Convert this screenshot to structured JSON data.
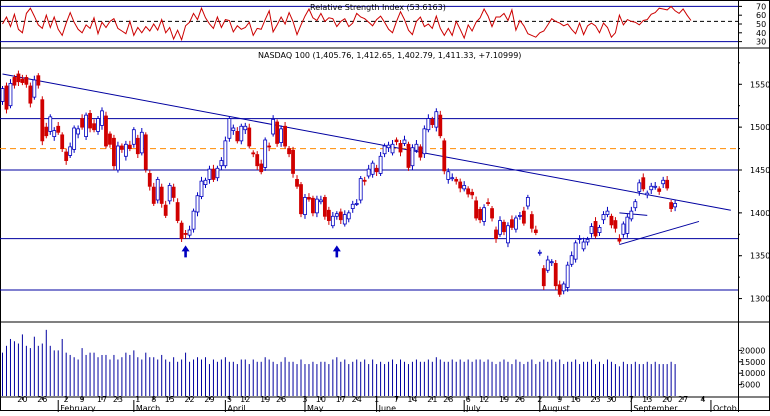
{
  "chart_data": [
    {
      "panel": "indicator",
      "type": "line",
      "title": "Relative Strength Index (53.6163)",
      "ylim": [
        25,
        75
      ],
      "y_ticks": [
        "70",
        "60",
        "50",
        "40",
        "30"
      ],
      "levels": [
        70,
        30
      ],
      "dashed_level": 53,
      "series": [
        {
          "values": [
            50,
            58,
            47,
            61,
            44,
            40,
            62,
            68,
            59,
            49,
            45,
            60,
            46,
            58,
            44,
            37,
            51,
            63,
            52,
            44,
            40,
            49,
            45,
            57,
            39,
            52,
            46,
            53,
            56,
            45,
            42,
            39,
            53,
            37,
            46,
            40,
            47,
            42,
            50,
            43,
            55,
            40,
            46,
            33,
            43,
            32,
            48,
            52,
            62,
            55,
            68,
            57,
            50,
            45,
            58,
            46,
            55,
            54,
            41,
            48,
            44,
            46,
            52,
            37,
            45,
            44,
            55,
            65,
            41,
            49,
            58,
            50,
            63,
            53,
            38,
            49,
            59,
            67,
            57,
            54,
            62,
            53,
            57,
            56,
            47,
            53,
            56,
            47,
            51,
            62,
            58,
            56,
            52,
            48,
            55,
            59,
            52,
            44,
            40,
            53,
            64,
            55,
            43,
            38,
            53,
            58,
            47,
            50,
            45,
            59,
            45,
            37,
            45,
            37,
            53,
            44,
            34,
            49,
            42,
            52,
            57,
            67,
            59,
            47,
            58,
            58,
            62,
            54,
            66,
            43,
            54,
            48,
            39,
            37,
            35,
            40,
            42,
            49,
            56,
            53,
            51,
            48,
            50,
            44,
            39,
            51,
            38,
            48,
            51,
            48,
            40,
            51,
            46,
            35,
            40,
            60,
            49,
            55,
            53,
            52,
            49,
            54,
            55,
            61,
            63,
            68,
            67,
            66,
            70,
            65,
            62,
            67,
            60,
            54
          ]
        }
      ]
    },
    {
      "panel": "price",
      "type": "candlestick",
      "title": "NASDAQ 100 (1,405.76, 1,412.65, 1,402.79, 1,411.33, +7.10999)",
      "ylim": [
        1275,
        1590
      ],
      "y_ticks": [
        "1550",
        "1500",
        "1450",
        "1400",
        "1350",
        "1300"
      ],
      "horizontal_levels": [
        1510,
        1450,
        1370,
        1310
      ],
      "dashed_level": 1475,
      "trendline": [
        [
          0,
          1562
        ],
        [
          183,
          1403
        ]
      ],
      "triangle": [
        [
          155,
          1400
        ],
        [
          162,
          1397
        ],
        [
          155,
          1363
        ],
        [
          175,
          1390
        ]
      ],
      "arrows_at": [
        46,
        84
      ],
      "candles": [
        [
          1530,
          1545
        ],
        [
          1548,
          1521
        ],
        [
          1525,
          1551
        ],
        [
          1558,
          1549
        ],
        [
          1562,
          1553
        ],
        [
          1556,
          1552
        ],
        [
          1558,
          1550
        ],
        [
          1548,
          1528
        ],
        [
          1535,
          1555
        ],
        [
          1560,
          1549
        ],
        [
          1532,
          1484
        ],
        [
          1500,
          1490
        ],
        [
          1495,
          1512
        ],
        [
          1489,
          1496
        ],
        [
          1501,
          1494
        ],
        [
          1491,
          1475
        ],
        [
          1471,
          1461
        ],
        [
          1467,
          1477
        ],
        [
          1474,
          1499
        ],
        [
          1492,
          1498
        ],
        [
          1510,
          1500
        ],
        [
          1489,
          1514
        ],
        [
          1516,
          1499
        ],
        [
          1504,
          1497
        ],
        [
          1495,
          1510
        ],
        [
          1502,
          1519
        ],
        [
          1513,
          1478
        ],
        [
          1492,
          1480
        ],
        [
          1487,
          1455
        ],
        [
          1450,
          1478
        ],
        [
          1478,
          1474
        ],
        [
          1466,
          1480
        ],
        [
          1479,
          1475
        ],
        [
          1480,
          1497
        ],
        [
          1487,
          1469
        ],
        [
          1470,
          1494
        ],
        [
          1491,
          1451
        ],
        [
          1446,
          1431
        ],
        [
          1430,
          1411
        ],
        [
          1415,
          1439
        ],
        [
          1430,
          1411
        ],
        [
          1409,
          1397
        ],
        [
          1414,
          1432
        ],
        [
          1430,
          1418
        ],
        [
          1412,
          1391
        ],
        [
          1388,
          1370
        ],
        [
          1376,
          1375
        ],
        [
          1374,
          1380
        ],
        [
          1381,
          1402
        ],
        [
          1401,
          1420
        ],
        [
          1419,
          1437
        ],
        [
          1433,
          1438
        ],
        [
          1439,
          1451
        ],
        [
          1451,
          1439
        ],
        [
          1441,
          1452
        ],
        [
          1455,
          1461
        ],
        [
          1455,
          1484
        ],
        [
          1487,
          1510
        ],
        [
          1496,
          1499
        ],
        [
          1495,
          1484
        ],
        [
          1484,
          1501
        ],
        [
          1497,
          1501
        ],
        [
          1499,
          1478
        ],
        [
          1470,
          1469
        ],
        [
          1468,
          1455
        ],
        [
          1457,
          1448
        ],
        [
          1453,
          1485
        ],
        [
          1478,
          1477
        ],
        [
          1492,
          1509
        ],
        [
          1506,
          1481
        ],
        [
          1482,
          1498
        ],
        [
          1501,
          1478
        ],
        [
          1475,
          1469
        ],
        [
          1473,
          1446
        ],
        [
          1439,
          1431
        ],
        [
          1433,
          1399
        ],
        [
          1398,
          1418
        ],
        [
          1418,
          1416
        ],
        [
          1417,
          1400
        ],
        [
          1400,
          1416
        ],
        [
          1413,
          1415
        ],
        [
          1418,
          1396
        ],
        [
          1403,
          1391
        ],
        [
          1385,
          1396
        ],
        [
          1396,
          1399
        ],
        [
          1401,
          1392
        ],
        [
          1387,
          1398
        ],
        [
          1393,
          1400
        ],
        [
          1405,
          1410
        ],
        [
          1411,
          1411
        ],
        [
          1415,
          1440
        ],
        [
          1438,
          1437
        ],
        [
          1443,
          1451
        ],
        [
          1445,
          1458
        ],
        [
          1452,
          1448
        ],
        [
          1446,
          1466
        ],
        [
          1469,
          1478
        ],
        [
          1476,
          1479
        ],
        [
          1470,
          1480
        ],
        [
          1485,
          1483
        ],
        [
          1481,
          1471
        ],
        [
          1481,
          1485
        ],
        [
          1480,
          1453
        ],
        [
          1455,
          1476
        ],
        [
          1473,
          1480
        ],
        [
          1477,
          1465
        ],
        [
          1469,
          1498
        ],
        [
          1497,
          1510
        ],
        [
          1509,
          1503
        ],
        [
          1500,
          1518
        ],
        [
          1514,
          1490
        ],
        [
          1484,
          1449
        ],
        [
          1439,
          1448
        ],
        [
          1440,
          1441
        ],
        [
          1439,
          1437
        ],
        [
          1436,
          1429
        ],
        [
          1428,
          1432
        ],
        [
          1428,
          1422
        ],
        [
          1424,
          1421
        ],
        [
          1414,
          1394
        ],
        [
          1404,
          1392
        ],
        [
          1390,
          1406
        ],
        [
          1412,
          1411
        ],
        [
          1405,
          1394
        ],
        [
          1380,
          1370
        ],
        [
          1375,
          1391
        ],
        [
          1389,
          1378
        ],
        [
          1365,
          1385
        ],
        [
          1392,
          1383
        ],
        [
          1381,
          1394
        ],
        [
          1397,
          1397
        ],
        [
          1402,
          1388
        ],
        [
          1408,
          1418
        ],
        [
          1398,
          1382
        ],
        [
          1380,
          1377
        ],
        [
          1354,
          1354
        ],
        [
          1335,
          1315
        ],
        [
          1333,
          1345
        ],
        [
          1342,
          1343
        ],
        [
          1341,
          1315
        ],
        [
          1316,
          1305
        ],
        [
          1309,
          1317
        ],
        [
          1313,
          1339
        ],
        [
          1340,
          1350
        ],
        [
          1346,
          1365
        ],
        [
          1369,
          1370
        ],
        [
          1358,
          1366
        ],
        [
          1366,
          1369
        ],
        [
          1376,
          1384
        ],
        [
          1390,
          1373
        ],
        [
          1377,
          1383
        ],
        [
          1392,
          1398
        ],
        [
          1398,
          1402
        ],
        [
          1396,
          1386
        ],
        [
          1391,
          1382
        ],
        [
          1370,
          1367
        ],
        [
          1375,
          1387
        ],
        [
          1376,
          1395
        ],
        [
          1393,
          1402
        ],
        [
          1406,
          1413
        ],
        [
          1425,
          1435
        ],
        [
          1441,
          1428
        ],
        [
          1421,
          1423
        ],
        [
          1427,
          1431
        ],
        [
          1430,
          1431
        ],
        [
          1428,
          1425
        ],
        [
          1434,
          1438
        ],
        [
          1438,
          1429
        ],
        [
          1412,
          1405
        ],
        [
          1407,
          1411
        ]
      ],
      "x_tick_labels": [
        "20",
        "26",
        "2",
        "9",
        "17",
        "23",
        "1",
        "8",
        "15",
        "22",
        "29",
        "5",
        "12",
        "19",
        "26",
        "3",
        "10",
        "17",
        "24",
        "1",
        "7",
        "14",
        "21",
        "28",
        "6",
        "12",
        "19",
        "26",
        "2",
        "9",
        "16",
        "23",
        "30",
        "7",
        "13",
        "20",
        "27",
        "4"
      ],
      "x_tick_positions": [
        5,
        10,
        16,
        20,
        25,
        29,
        34,
        38,
        42,
        47,
        52,
        57,
        61,
        66,
        70,
        76,
        80,
        85,
        89,
        94,
        99,
        103,
        108,
        112,
        117,
        121,
        126,
        130,
        135,
        140,
        144,
        149,
        153,
        158,
        162,
        167,
        171,
        176
      ],
      "month_labels": [
        {
          "label": "February",
          "at": 14
        },
        {
          "label": "March",
          "at": 33
        },
        {
          "label": "April",
          "at": 56
        },
        {
          "label": "May",
          "at": 76
        },
        {
          "label": "June",
          "at": 94
        },
        {
          "label": "July",
          "at": 116
        },
        {
          "label": "August",
          "at": 135
        },
        {
          "label": "September",
          "at": 158
        },
        {
          "label": "Octob",
          "at": 178
        }
      ]
    },
    {
      "panel": "volume",
      "type": "bar",
      "ylim": [
        0,
        32000
      ],
      "y_ticks": [
        "20000",
        "15000",
        "10000",
        "5000"
      ],
      "values": [
        19000,
        22000,
        25000,
        24000,
        23000,
        27000,
        22000,
        21000,
        26000,
        22000,
        23000,
        29000,
        22000,
        20000,
        20000,
        25000,
        19000,
        18000,
        17000,
        16000,
        21000,
        18000,
        19000,
        19000,
        17000,
        18000,
        18000,
        16000,
        18000,
        16000,
        17000,
        19000,
        18000,
        20000,
        17000,
        16000,
        19000,
        17000,
        17000,
        16000,
        18000,
        16000,
        15000,
        17000,
        15000,
        16000,
        19000,
        15000,
        16000,
        17000,
        16000,
        17000,
        14000,
        16000,
        15000,
        16000,
        17000,
        15000,
        15000,
        14000,
        16000,
        16000,
        14000,
        16000,
        15000,
        15000,
        17000,
        16000,
        15000,
        14000,
        15000,
        17000,
        15000,
        15000,
        14000,
        16000,
        14000,
        14000,
        15000,
        14000,
        15000,
        15000,
        14000,
        16000,
        17000,
        15000,
        16000,
        14000,
        15000,
        16000,
        15000,
        16000,
        14000,
        16000,
        14000,
        15000,
        14000,
        15000,
        16000,
        14000,
        16000,
        15000,
        14000,
        15000,
        16000,
        15000,
        15000,
        16000,
        15000,
        17000,
        16000,
        15000,
        15000,
        16000,
        15000,
        16000,
        15000,
        16000,
        15000,
        16000,
        16000,
        15000,
        16000,
        15000,
        14000,
        15000,
        16000,
        15000,
        14000,
        16000,
        15000,
        14000,
        15000,
        16000,
        14000,
        15000,
        16000,
        15000,
        16000,
        15000,
        16000,
        14000,
        15000,
        15000,
        16000,
        14000,
        15000,
        15000,
        16000,
        14000,
        15000,
        14000,
        16000,
        15000,
        14000,
        13000,
        15000,
        14000,
        14000,
        15000,
        14000,
        14000,
        15000,
        14000,
        15000,
        14000,
        14000,
        14000,
        15000,
        14000
      ]
    }
  ]
}
